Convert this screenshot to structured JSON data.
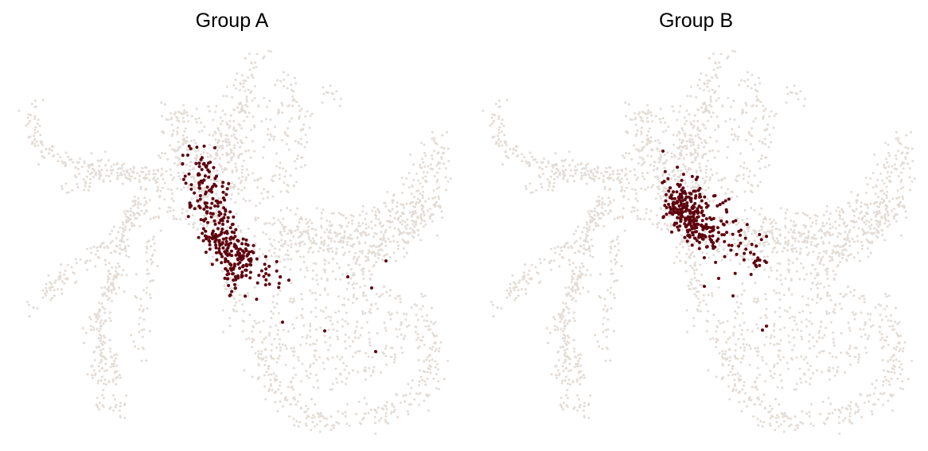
{
  "colors": {
    "background_cells": "#e3dcd6",
    "highlight_cells": "#5e000e"
  },
  "chart_data": [
    {
      "type": "scatter",
      "title": "Group A",
      "axes_visible": false,
      "background_color": "#e3dcd6",
      "highlight_color": "#5e000e",
      "background_n": 2600,
      "highlight": {
        "clusters": [
          {
            "x": [
              245,
              300
            ],
            "y": [
              200,
              360
            ],
            "n": 260,
            "spread": 20
          },
          {
            "x": [
              280,
              345
            ],
            "y": [
              300,
              350
            ],
            "n": 70,
            "spread": 14
          }
        ],
        "outliers": [
          [
            355,
            405
          ],
          [
            408,
            416
          ],
          [
            472,
            442
          ],
          [
            437,
            348
          ],
          [
            467,
            362
          ],
          [
            485,
            328
          ],
          [
            236,
            195
          ],
          [
            262,
            205
          ]
        ]
      }
    },
    {
      "type": "scatter",
      "title": "Group B",
      "axes_visible": false,
      "background_color": "#e3dcd6",
      "highlight_color": "#5e000e",
      "background_n": 2600,
      "highlight": {
        "clusters": [
          {
            "x": [
              260,
              300
            ],
            "y": [
              240,
              300
            ],
            "n": 200,
            "spread": 18
          },
          {
            "x": [
              270,
              360
            ],
            "y": [
              230,
              325
            ],
            "n": 120,
            "spread": 26
          }
        ],
        "outliers": [
          [
            380,
            410
          ],
          [
            375,
            415
          ],
          [
            338,
            372
          ],
          [
            320,
            350
          ],
          [
            302,
            360
          ],
          [
            250,
            190
          ]
        ]
      }
    }
  ]
}
